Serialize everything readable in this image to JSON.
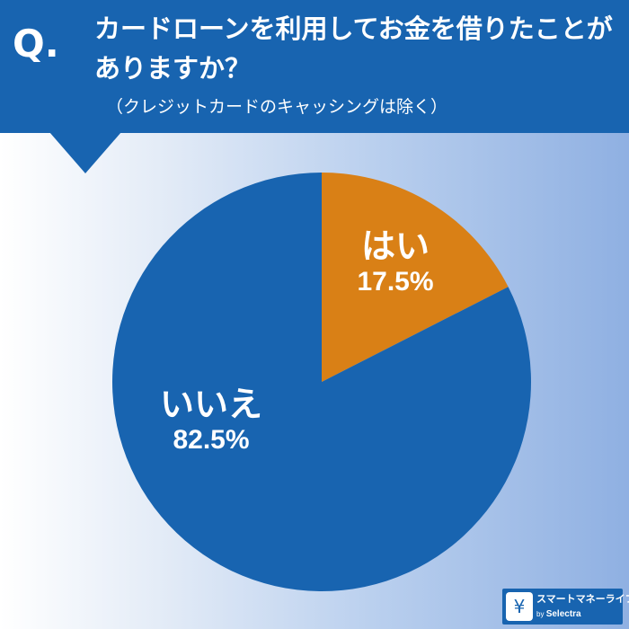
{
  "header": {
    "q_mark": "Q.",
    "question": "カードローンを利用してお金を借りたことがありますか？",
    "note": "（クレジットカードのキャッシングは除く）"
  },
  "chart_data": {
    "type": "pie",
    "slices": [
      {
        "label": "はい",
        "value": 17.5,
        "value_text": "17.5%",
        "color": "#d98016"
      },
      {
        "label": "いいえ",
        "value": 82.5,
        "value_text": "82.5%",
        "color": "#1864b0"
      }
    ]
  },
  "logo": {
    "name": "スマートマネーライフ",
    "by": "by",
    "brand": "Selectra"
  },
  "colors": {
    "header_bg": "#1864b0",
    "slice_yes": "#d98016",
    "slice_no": "#1864b0"
  }
}
